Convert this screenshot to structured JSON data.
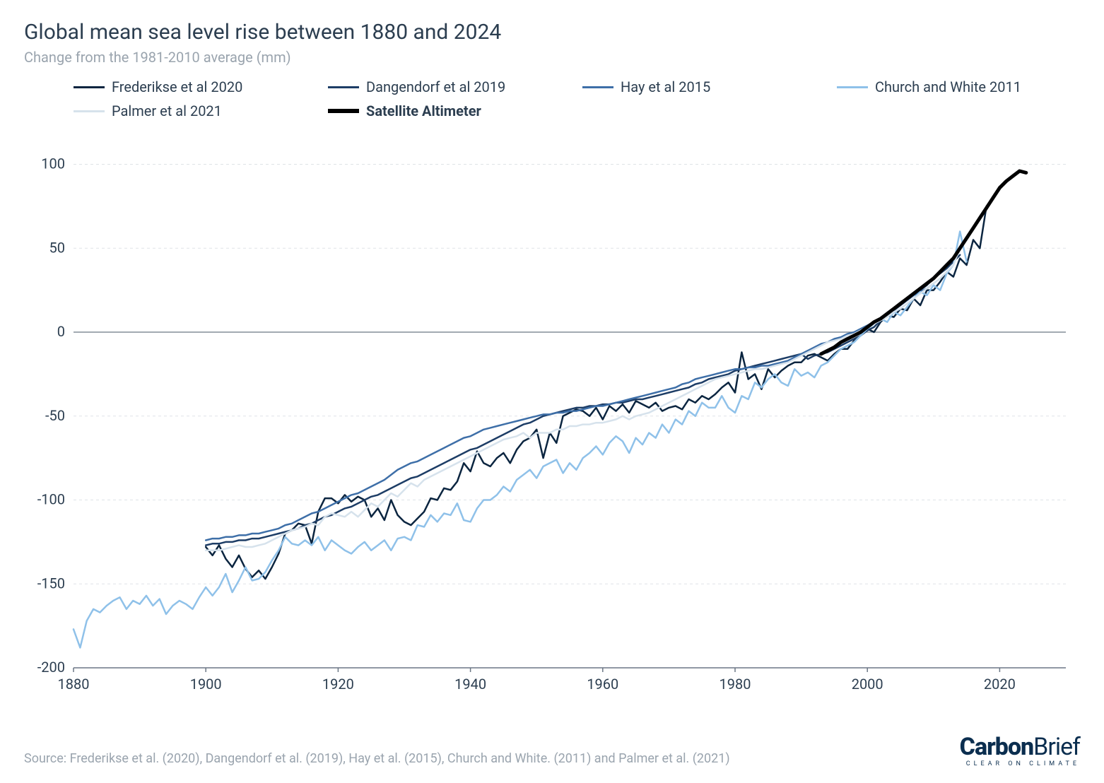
{
  "title": "Global mean sea level rise between 1880 and 2024",
  "subtitle": "Change from the 1981-2010 average (mm)",
  "source": "Source: Frederikse et al. (2020), Dangendorf et al. (2019), Hay et al. (2015), Church and White. (2011) and Palmer et al. (2021)",
  "brand_main_a": "Carbon",
  "brand_main_b": "Brief",
  "brand_tag": "CLEAR ON CLIMATE",
  "chart": {
    "type": "line",
    "xlim": [
      1880,
      2030
    ],
    "ylim": [
      -200,
      120
    ],
    "xticks": [
      1880,
      1900,
      1920,
      1940,
      1960,
      1980,
      2000,
      2020
    ],
    "yticks": [
      -200,
      -150,
      -100,
      -50,
      0,
      50,
      100
    ],
    "background_color": "#ffffff",
    "grid_color": "#dfe3e7",
    "axis_text_color": "#2c3e50",
    "axis_fontsize": 20,
    "axis_line_color": "#6b7785",
    "legend_text_color": "#2c3e50",
    "line_width_thin": 2.5,
    "line_width_thick": 5
  },
  "series": [
    {
      "name": "Frederikse et al 2020",
      "color": "#0b2540",
      "thick": false,
      "start": 1900,
      "step": 1,
      "values": [
        -128,
        -133,
        -127,
        -135,
        -140,
        -133,
        -141,
        -146,
        -142,
        -147,
        -140,
        -132,
        -120,
        -118,
        -114,
        -115,
        -126,
        -107,
        -99,
        -99,
        -102,
        -97,
        -101,
        -98,
        -100,
        -110,
        -105,
        -112,
        -100,
        -109,
        -113,
        -115,
        -111,
        -107,
        -99,
        -100,
        -93,
        -94,
        -89,
        -78,
        -83,
        -71,
        -78,
        -80,
        -75,
        -72,
        -78,
        -70,
        -65,
        -63,
        -58,
        -75,
        -60,
        -66,
        -50,
        -48,
        -46,
        -47,
        -50,
        -45,
        -52,
        -44,
        -47,
        -43,
        -48,
        -41,
        -43,
        -45,
        -42,
        -47,
        -45,
        -44,
        -46,
        -40,
        -42,
        -38,
        -40,
        -37,
        -33,
        -30,
        -36,
        -12,
        -28,
        -25,
        -34,
        -22,
        -27,
        -23,
        -20,
        -18,
        -18,
        -14,
        -13,
        -15,
        -17,
        -13,
        -10,
        -10,
        -5,
        -2,
        2,
        0,
        6,
        10,
        9,
        14,
        13,
        20,
        16,
        25,
        25,
        30,
        36,
        33,
        44,
        40,
        55,
        50,
        75
      ]
    },
    {
      "name": "Dangendorf et al 2019",
      "color": "#1d3d66",
      "thick": false,
      "start": 1900,
      "step": 1,
      "values": [
        -127,
        -126,
        -126,
        -125,
        -125,
        -124,
        -124,
        -123,
        -123,
        -122,
        -121,
        -120,
        -119,
        -118,
        -117,
        -115,
        -114,
        -112,
        -110,
        -109,
        -107,
        -105,
        -104,
        -102,
        -100,
        -98,
        -97,
        -95,
        -93,
        -91,
        -89,
        -87,
        -86,
        -84,
        -82,
        -80,
        -78,
        -76,
        -74,
        -72,
        -70,
        -69,
        -67,
        -65,
        -63,
        -61,
        -59,
        -57,
        -55,
        -54,
        -52,
        -50,
        -49,
        -48,
        -47,
        -46,
        -45,
        -45,
        -44,
        -44,
        -43,
        -43,
        -42,
        -42,
        -41,
        -40,
        -40,
        -39,
        -38,
        -37,
        -36,
        -35,
        -34,
        -33,
        -31,
        -30,
        -28,
        -27,
        -26,
        -25,
        -23,
        -22,
        -21,
        -20,
        -19,
        -18,
        -17,
        -16,
        -15,
        -14,
        -13,
        -16,
        -14,
        -13,
        -12,
        -10,
        -8,
        -6,
        -4,
        -2,
        1,
        3,
        7,
        10,
        13,
        16,
        19,
        22,
        25,
        28,
        32,
        35,
        38,
        42,
        46
      ]
    },
    {
      "name": "Hay et al 2015",
      "color": "#3e6fa8",
      "thick": false,
      "start": 1900,
      "step": 1,
      "values": [
        -124,
        -123,
        -123,
        -122,
        -122,
        -121,
        -121,
        -120,
        -120,
        -119,
        -118,
        -117,
        -115,
        -114,
        -112,
        -110,
        -108,
        -107,
        -105,
        -103,
        -101,
        -99,
        -97,
        -96,
        -94,
        -92,
        -90,
        -88,
        -85,
        -82,
        -80,
        -78,
        -77,
        -75,
        -73,
        -71,
        -69,
        -67,
        -65,
        -63,
        -62,
        -60,
        -58,
        -57,
        -56,
        -55,
        -54,
        -53,
        -52,
        -51,
        -50,
        -49,
        -49,
        -48,
        -48,
        -47,
        -47,
        -46,
        -45,
        -44,
        -44,
        -43,
        -42,
        -41,
        -40,
        -39,
        -38,
        -37,
        -36,
        -35,
        -34,
        -33,
        -31,
        -30,
        -28,
        -27,
        -26,
        -25,
        -24,
        -23,
        -22,
        -22,
        -21,
        -21,
        -20,
        -20,
        -19,
        -18,
        -17,
        -15,
        -13,
        -11,
        -9,
        -7,
        -6,
        -4,
        -3,
        -1,
        0,
        2,
        4,
        6,
        8,
        11,
        14,
        17,
        19,
        22,
        24,
        26,
        29
      ]
    },
    {
      "name": "Church and White 2011",
      "color": "#8fc1e9",
      "thick": false,
      "start": 1880,
      "step": 1,
      "values": [
        -177,
        -188,
        -172,
        -165,
        -167,
        -163,
        -160,
        -158,
        -165,
        -160,
        -162,
        -157,
        -163,
        -159,
        -168,
        -163,
        -160,
        -162,
        -165,
        -158,
        -152,
        -157,
        -152,
        -144,
        -155,
        -148,
        -140,
        -148,
        -147,
        -143,
        -136,
        -130,
        -122,
        -126,
        -127,
        -124,
        -127,
        -122,
        -130,
        -124,
        -127,
        -130,
        -132,
        -128,
        -125,
        -130,
        -127,
        -124,
        -130,
        -123,
        -122,
        -124,
        -115,
        -116,
        -109,
        -113,
        -108,
        -109,
        -102,
        -112,
        -113,
        -105,
        -100,
        -100,
        -97,
        -92,
        -95,
        -88,
        -85,
        -82,
        -87,
        -80,
        -78,
        -76,
        -84,
        -78,
        -82,
        -75,
        -72,
        -68,
        -73,
        -66,
        -62,
        -65,
        -72,
        -63,
        -67,
        -60,
        -63,
        -55,
        -60,
        -52,
        -55,
        -47,
        -50,
        -42,
        -45,
        -45,
        -38,
        -45,
        -48,
        -38,
        -40,
        -30,
        -33,
        -28,
        -25,
        -30,
        -32,
        -22,
        -26,
        -24,
        -27,
        -20,
        -18,
        -14,
        -10,
        -8,
        -6,
        -2,
        2,
        5,
        8,
        6,
        12,
        10,
        15,
        20,
        24,
        22,
        28,
        25,
        35,
        40,
        60,
        42
      ]
    },
    {
      "name": "Palmer et al 2021",
      "color": "#d6e2ec",
      "thick": false,
      "start": 1900,
      "step": 1,
      "values": [
        -130,
        -130,
        -130,
        -129,
        -128,
        -127,
        -128,
        -128,
        -127,
        -126,
        -124,
        -122,
        -120,
        -118,
        -117,
        -116,
        -114,
        -115,
        -110,
        -108,
        -109,
        -110,
        -107,
        -110,
        -106,
        -102,
        -104,
        -100,
        -96,
        -98,
        -94,
        -90,
        -92,
        -88,
        -86,
        -84,
        -82,
        -80,
        -78,
        -76,
        -74,
        -72,
        -70,
        -68,
        -66,
        -64,
        -63,
        -62,
        -60,
        -63,
        -60,
        -60,
        -60,
        -58,
        -58,
        -56,
        -56,
        -55,
        -55,
        -54,
        -54,
        -53,
        -52,
        -50,
        -52,
        -50,
        -49,
        -48,
        -46,
        -44,
        -42,
        -40,
        -38,
        -36,
        -34,
        -32,
        -30,
        -28,
        -27,
        -26,
        -25,
        -24,
        -23,
        -22,
        -22,
        -21,
        -20,
        -19,
        -18,
        -16,
        -14,
        -12,
        -10,
        -8,
        -6,
        -5,
        -4,
        -2,
        -1,
        1,
        3,
        5,
        7,
        9,
        12,
        14,
        17,
        20,
        23,
        26,
        29,
        32,
        36,
        40,
        50
      ]
    },
    {
      "name": "Satellite Altimeter",
      "color": "#000000",
      "thick": true,
      "start": 1993,
      "step": 1,
      "values": [
        -13,
        -11,
        -9,
        -6,
        -4,
        -2,
        0,
        3,
        6,
        8,
        11,
        14,
        17,
        20,
        23,
        26,
        29,
        32,
        36,
        40,
        44,
        50,
        56,
        62,
        68,
        74,
        80,
        86,
        90,
        93,
        96,
        95
      ]
    }
  ]
}
